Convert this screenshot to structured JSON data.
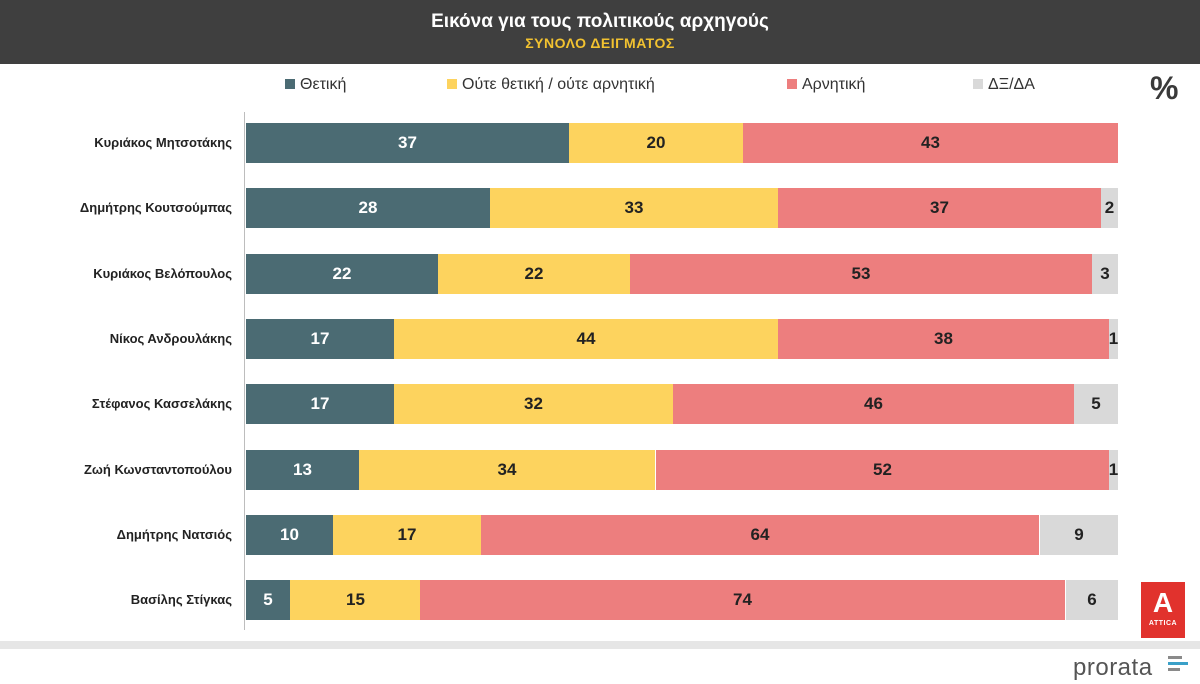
{
  "header": {
    "title": "Εικόνα για τους πολιτικούς αρχηγούς",
    "subtitle": "ΣΥΝΟΛΟ ΔΕΙΓΜΑΤΟΣ"
  },
  "unit_label": "%",
  "legend": [
    {
      "label": "Θετική",
      "color": "#4b6b73"
    },
    {
      "label": "Ούτε θετική / ούτε αρνητική",
      "color": "#fdd35e"
    },
    {
      "label": "Αρνητική",
      "color": "#ed7e7e"
    },
    {
      "label": "ΔΞ/ΔΑ",
      "color": "#d9d9d9"
    }
  ],
  "chart_data": {
    "type": "bar",
    "orientation": "horizontal",
    "stacked": true,
    "title": "Εικόνα για τους πολιτικούς αρχηγούς",
    "subtitle": "ΣΥΝΟΛΟ ΔΕΙΓΜΑΤΟΣ",
    "xlim": [
      0,
      100
    ],
    "legend_position": "top",
    "categories": [
      "Κυριάκος Μητσοτάκης",
      "Δημήτρης Κουτσούμπας",
      "Κυριάκος Βελόπουλος",
      "Νίκος Ανδρουλάκης",
      "Στέφανος Κασσελάκης",
      "Ζωή Κωνσταντοπούλου",
      "Δημήτρης Νατσιός",
      "Βασίλης Στίγκας"
    ],
    "series": [
      {
        "name": "Θετική",
        "key": "pos",
        "values": [
          37,
          28,
          22,
          17,
          17,
          13,
          10,
          5
        ]
      },
      {
        "name": "Ούτε θετική / ούτε αρνητική",
        "key": "neu",
        "values": [
          20,
          33,
          22,
          44,
          32,
          34,
          17,
          15
        ]
      },
      {
        "name": "Αρνητική",
        "key": "neg",
        "values": [
          43,
          37,
          53,
          38,
          46,
          52,
          64,
          74
        ]
      },
      {
        "name": "ΔΞ/ΔΑ",
        "key": "dk",
        "values": [
          null,
          2,
          3,
          1,
          5,
          1,
          9,
          6
        ]
      }
    ]
  },
  "brand": {
    "logo_mark": "Α",
    "logo_text": "ATTICA",
    "logo_color": "#e1322d",
    "pollster": "prorata"
  }
}
